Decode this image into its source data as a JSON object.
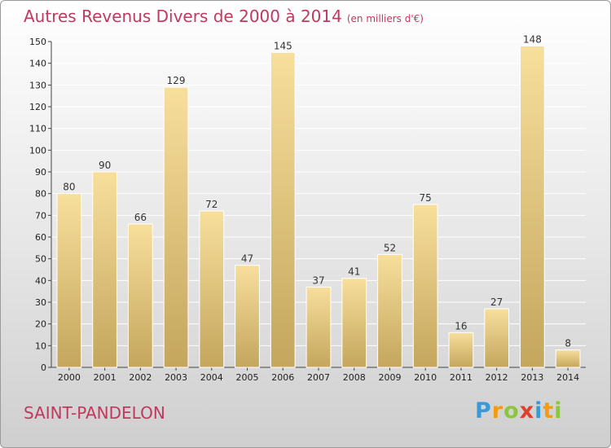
{
  "title": "Autres Revenus Divers de 2000 à 2014",
  "subtitle": "(en milliers d'€)",
  "commune": "SAINT-PANDELON",
  "brand": {
    "letters": [
      "P",
      "r",
      "o",
      "x",
      "i",
      "t",
      "i"
    ],
    "colors": [
      "#3a9ad9",
      "#f39c12",
      "#8cc63e",
      "#e0402a",
      "#3a9ad9",
      "#f39c12",
      "#8cc63e"
    ]
  },
  "colors": {
    "title": "#c0395f",
    "bar_light": "#f7df9c",
    "bar_dark": "#c4a65d",
    "bar_outline": "#ffffff",
    "grid": "#ffffff"
  },
  "chart_data": {
    "type": "bar",
    "title": "Autres Revenus Divers de 2000 à 2014",
    "subtitle": "(en milliers d'€)",
    "categories": [
      "2000",
      "2001",
      "2002",
      "2003",
      "2004",
      "2005",
      "2006",
      "2007",
      "2008",
      "2009",
      "2010",
      "2011",
      "2012",
      "2013",
      "2014"
    ],
    "values": [
      80,
      90,
      66,
      129,
      72,
      47,
      145,
      37,
      41,
      52,
      75,
      16,
      27,
      148,
      8
    ],
    "ylim": [
      0,
      150
    ],
    "yticks": [
      0,
      10,
      20,
      30,
      40,
      50,
      60,
      70,
      80,
      90,
      100,
      110,
      120,
      130,
      140,
      150
    ],
    "grid": true,
    "data_labels": true
  }
}
